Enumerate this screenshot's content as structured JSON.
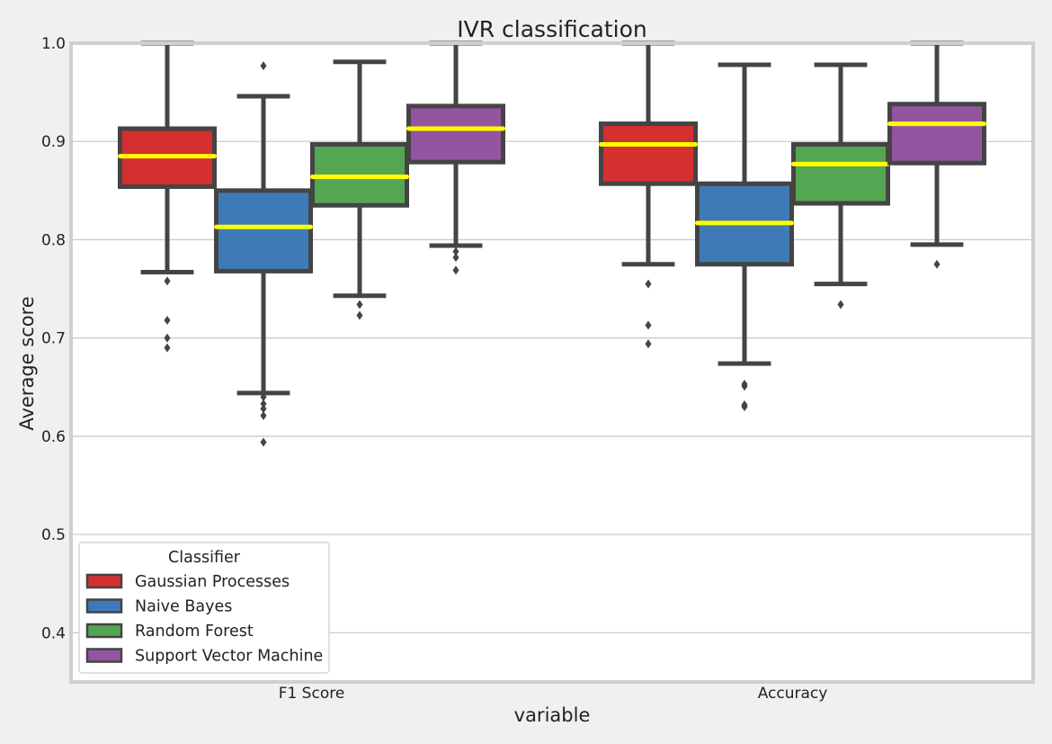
{
  "chart_data": {
    "type": "box",
    "title": "IVR classification",
    "xlabel": "variable",
    "ylabel": "Average score",
    "ylim": [
      0.35,
      1.0
    ],
    "yticks": [
      0.4,
      0.5,
      0.6,
      0.7,
      0.8,
      0.9,
      1.0
    ],
    "ytick_labels": [
      "0.4",
      "0.5",
      "0.6",
      "0.7",
      "0.8",
      "0.9",
      "1.0"
    ],
    "categories": [
      "F1 Score",
      "Accuracy"
    ],
    "grid": true,
    "legend": {
      "title": "Classifier",
      "position": "lower-left"
    },
    "median_color": "#ffff00",
    "series": [
      {
        "name": "Gaussian Processes",
        "color": "#d62f2f",
        "boxes": [
          {
            "whislo": 0.767,
            "q1": 0.854,
            "med": 0.885,
            "q3": 0.913,
            "whishi": 1.0,
            "fliers": [
              0.758,
              0.718,
              0.7,
              0.69
            ]
          },
          {
            "whislo": 0.775,
            "q1": 0.857,
            "med": 0.897,
            "q3": 0.918,
            "whishi": 1.0,
            "fliers": [
              0.755,
              0.713,
              0.694
            ]
          }
        ]
      },
      {
        "name": "Naive Bayes",
        "color": "#3e7bb6",
        "boxes": [
          {
            "whislo": 0.644,
            "q1": 0.768,
            "med": 0.813,
            "q3": 0.85,
            "whishi": 0.946,
            "fliers": [
              0.977,
              0.64,
              0.633,
              0.628,
              0.621,
              0.594
            ]
          },
          {
            "whislo": 0.674,
            "q1": 0.775,
            "med": 0.817,
            "q3": 0.857,
            "whishi": 0.978,
            "fliers": [
              0.653,
              0.651,
              0.632,
              0.63
            ]
          }
        ]
      },
      {
        "name": "Random Forest",
        "color": "#55a652",
        "boxes": [
          {
            "whislo": 0.743,
            "q1": 0.835,
            "med": 0.864,
            "q3": 0.897,
            "whishi": 0.981,
            "fliers": [
              0.734,
              0.723
            ]
          },
          {
            "whislo": 0.755,
            "q1": 0.837,
            "med": 0.877,
            "q3": 0.897,
            "whishi": 0.978,
            "fliers": [
              0.734
            ]
          }
        ]
      },
      {
        "name": "Support Vector Machine",
        "color": "#93559f",
        "boxes": [
          {
            "whislo": 0.794,
            "q1": 0.879,
            "med": 0.913,
            "q3": 0.936,
            "whishi": 1.0,
            "fliers": [
              0.788,
              0.782,
              0.769
            ]
          },
          {
            "whislo": 0.795,
            "q1": 0.878,
            "med": 0.918,
            "q3": 0.938,
            "whishi": 1.0,
            "fliers": [
              0.775
            ]
          }
        ]
      }
    ]
  }
}
